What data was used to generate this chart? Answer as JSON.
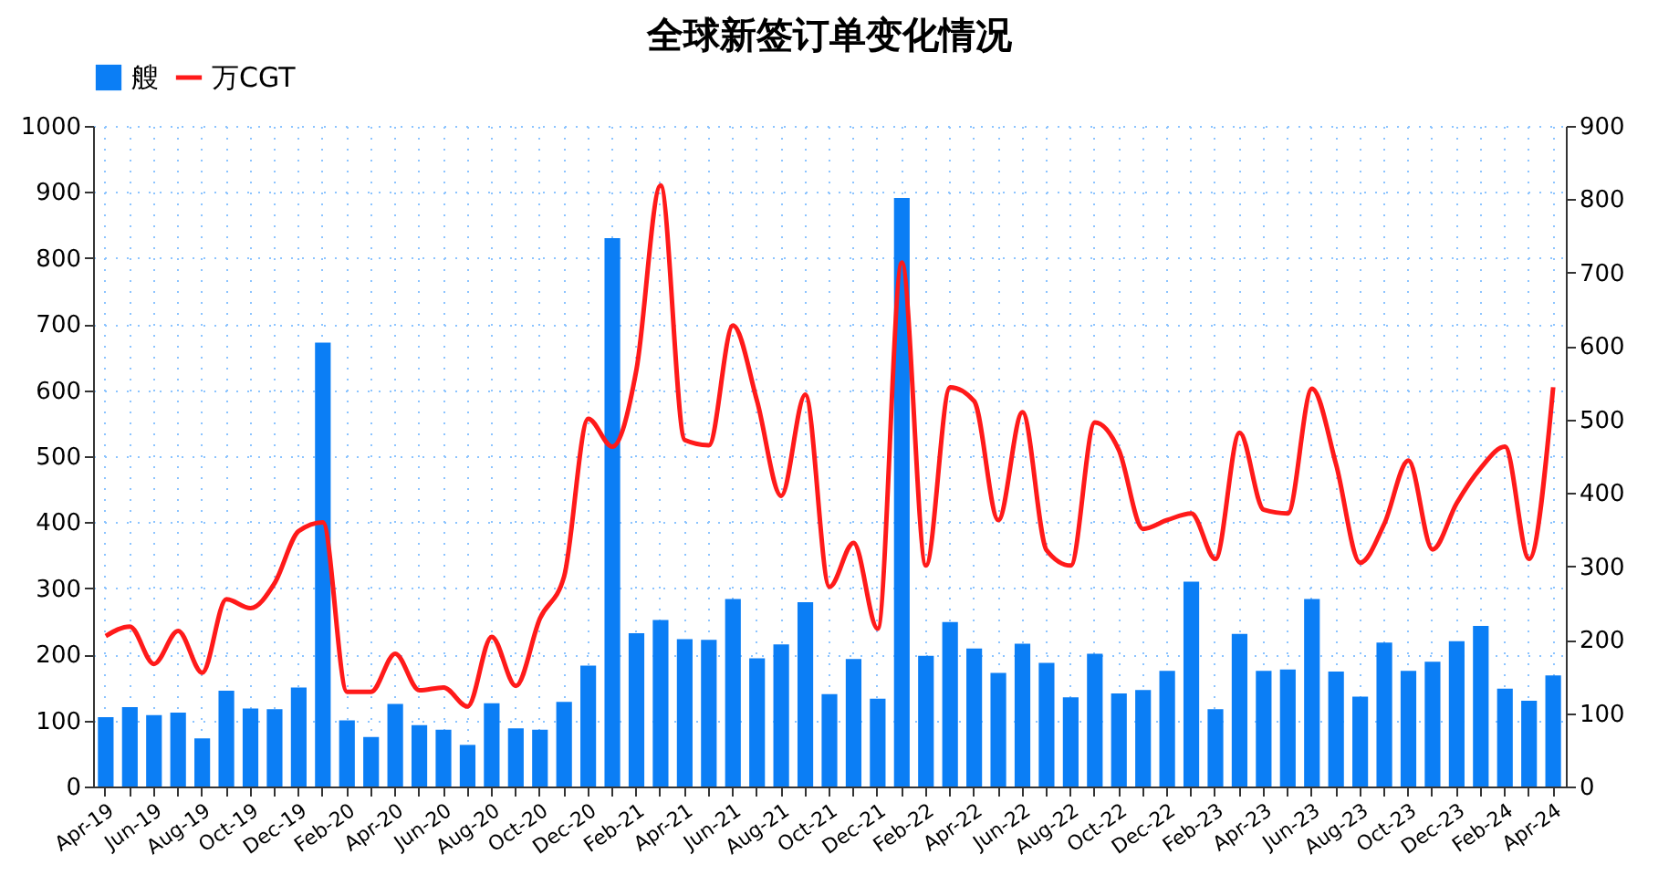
{
  "chart_data": {
    "type": "bar",
    "title": "全球新签订单变化情况",
    "categories": [
      "Apr-19",
      null,
      "Jun-19",
      null,
      "Aug-19",
      null,
      "Oct-19",
      null,
      "Dec-19",
      null,
      "Feb-20",
      null,
      "Apr-20",
      null,
      "Jun-20",
      null,
      "Aug-20",
      null,
      "Oct-20",
      null,
      "Dec-20",
      null,
      "Feb-21",
      null,
      "Apr-21",
      null,
      "Jun-21",
      null,
      "Aug-21",
      null,
      "Oct-21",
      null,
      "Dec-21",
      null,
      "Feb-22",
      null,
      "Apr-22",
      null,
      "Jun-22",
      null,
      "Aug-22",
      null,
      "Oct-22",
      null,
      "Dec-22",
      null,
      "Feb-23",
      null,
      "Apr-23",
      null,
      "Jun-23",
      null,
      "Aug-23",
      null,
      "Oct-23",
      null,
      "Dec-23",
      null,
      "Feb-24",
      null,
      "Apr-24"
    ],
    "series": [
      {
        "name": "艘",
        "color": "#0b7ef5",
        "values": [
          105,
          120,
          108,
          112,
          73,
          145,
          118,
          117,
          150,
          672,
          100,
          75,
          125,
          93,
          86,
          63,
          126,
          88,
          86,
          128,
          183,
          830,
          232,
          252,
          223,
          222,
          284,
          194,
          215,
          279,
          140,
          193,
          133,
          891,
          198,
          249,
          209,
          172,
          216,
          187,
          135,
          201,
          141,
          146,
          175,
          310,
          117,
          231,
          175,
          177,
          284,
          174,
          136,
          218,
          175,
          189,
          220,
          243,
          148,
          130,
          168
        ]
      },
      {
        "name": "万CGT",
        "type": "line",
        "axis": "y2",
        "color": "#ff1a1a",
        "values": [
          205,
          218,
          167,
          212,
          155,
          255,
          243,
          277,
          348,
          360,
          129,
          129,
          181,
          131,
          135,
          109,
          204,
          137,
          229,
          286,
          501,
          463,
          568,
          819,
          472,
          465,
          628,
          525,
          396,
          534,
          272,
          332,
          215,
          714,
          301,
          544,
          525,
          363,
          510,
          322,
          301,
          496,
          458,
          351,
          363,
          372,
          310,
          482,
          377,
          372,
          542,
          439,
          305,
          358,
          444,
          323,
          386,
          434,
          463,
          310,
          544
        ]
      }
    ],
    "ylim": [
      0,
      1000
    ],
    "yticks": [
      0,
      100,
      200,
      300,
      400,
      500,
      600,
      700,
      800,
      900,
      1000
    ],
    "y2lim": [
      0,
      900
    ],
    "y2ticks": [
      0,
      100,
      200,
      300,
      400,
      500,
      600,
      700,
      800,
      900
    ],
    "grid": true,
    "legend": "top",
    "line_style": "solid",
    "marker": "none"
  }
}
